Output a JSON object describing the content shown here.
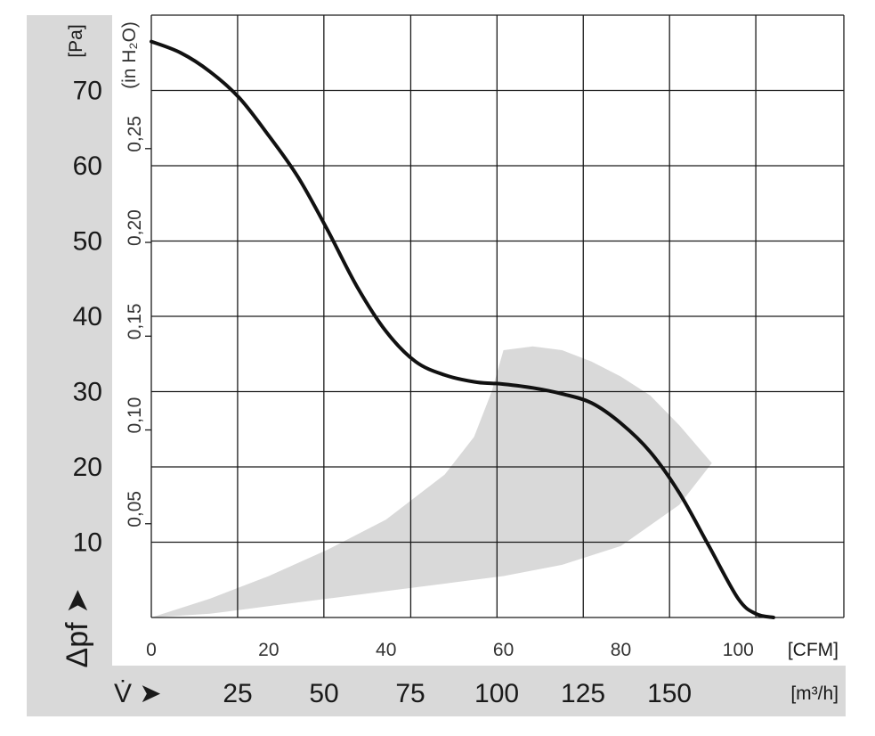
{
  "chart_data": {
    "type": "line",
    "series": [
      {
        "x": [
          0,
          5,
          10,
          15,
          20,
          25,
          30,
          35,
          40,
          45,
          50,
          55,
          58,
          60,
          65,
          70,
          75,
          80,
          85,
          90,
          95,
          100,
          103,
          106
        ],
        "y": [
          76.5,
          75,
          72.5,
          69,
          64,
          58.5,
          51.5,
          44,
          38,
          34,
          32.2,
          31.3,
          31.1,
          31,
          30.5,
          29.7,
          28.5,
          25.8,
          22,
          16.5,
          9.5,
          2.5,
          0.5,
          0
        ]
      }
    ],
    "operating_region": {
      "upper": {
        "x": [
          0,
          10,
          20,
          30,
          40,
          50,
          55,
          58,
          60,
          65,
          70,
          75,
          80,
          85,
          90,
          95.5
        ],
        "y": [
          0,
          2.5,
          5.5,
          9,
          13,
          19,
          24,
          30,
          35.5,
          36,
          35.5,
          34,
          32,
          29.5,
          25.5,
          20.5
        ]
      },
      "lower": {
        "x": [
          95.5,
          90,
          80,
          70,
          60,
          50,
          40,
          30,
          20,
          10,
          0
        ],
        "y": [
          20.5,
          15,
          9.5,
          7,
          5.5,
          4.5,
          3.5,
          2.5,
          1.5,
          0.5,
          0
        ]
      },
      "fill": "#d9d9d9"
    },
    "x_axis": {
      "unit_label": "[CFM]",
      "range": [
        0,
        118
      ],
      "ticks": [
        0,
        20,
        40,
        60,
        80,
        100
      ],
      "tick_labels": [
        "0",
        "20",
        "40",
        "60",
        "80",
        "100"
      ],
      "gridlines": [
        0,
        14.7,
        29.4,
        44.2,
        58.9,
        73.6,
        88.3,
        103,
        118
      ]
    },
    "x_axis_secondary": {
      "symbol": "V̇ ➤",
      "unit_label": "[m³/h]",
      "ticks": [
        25,
        50,
        75,
        100,
        125,
        150
      ],
      "tick_labels": [
        "25",
        "50",
        "75",
        "100",
        "125",
        "150"
      ]
    },
    "y_axis": {
      "unit_label": "[Pa]",
      "range": [
        0,
        80
      ],
      "ticks": [
        10,
        20,
        30,
        40,
        50,
        60,
        70
      ],
      "tick_labels": [
        "10",
        "20",
        "30",
        "40",
        "50",
        "60",
        "70"
      ],
      "gridlines": [
        0,
        10,
        20,
        30,
        40,
        50,
        60,
        70,
        80
      ],
      "symbol": "Δpf ➤"
    },
    "y_axis_secondary": {
      "unit_label": "(in H₂O)",
      "ticks": [
        0.05,
        0.1,
        0.15,
        0.2,
        0.25
      ],
      "tick_labels": [
        "0,05",
        "0,10",
        "0,15",
        "0,20",
        "0,25"
      ]
    },
    "grid": true,
    "colors": {
      "curve": "#111111",
      "grid": "#1a1a1a",
      "panel": "#d9d9d9"
    }
  }
}
